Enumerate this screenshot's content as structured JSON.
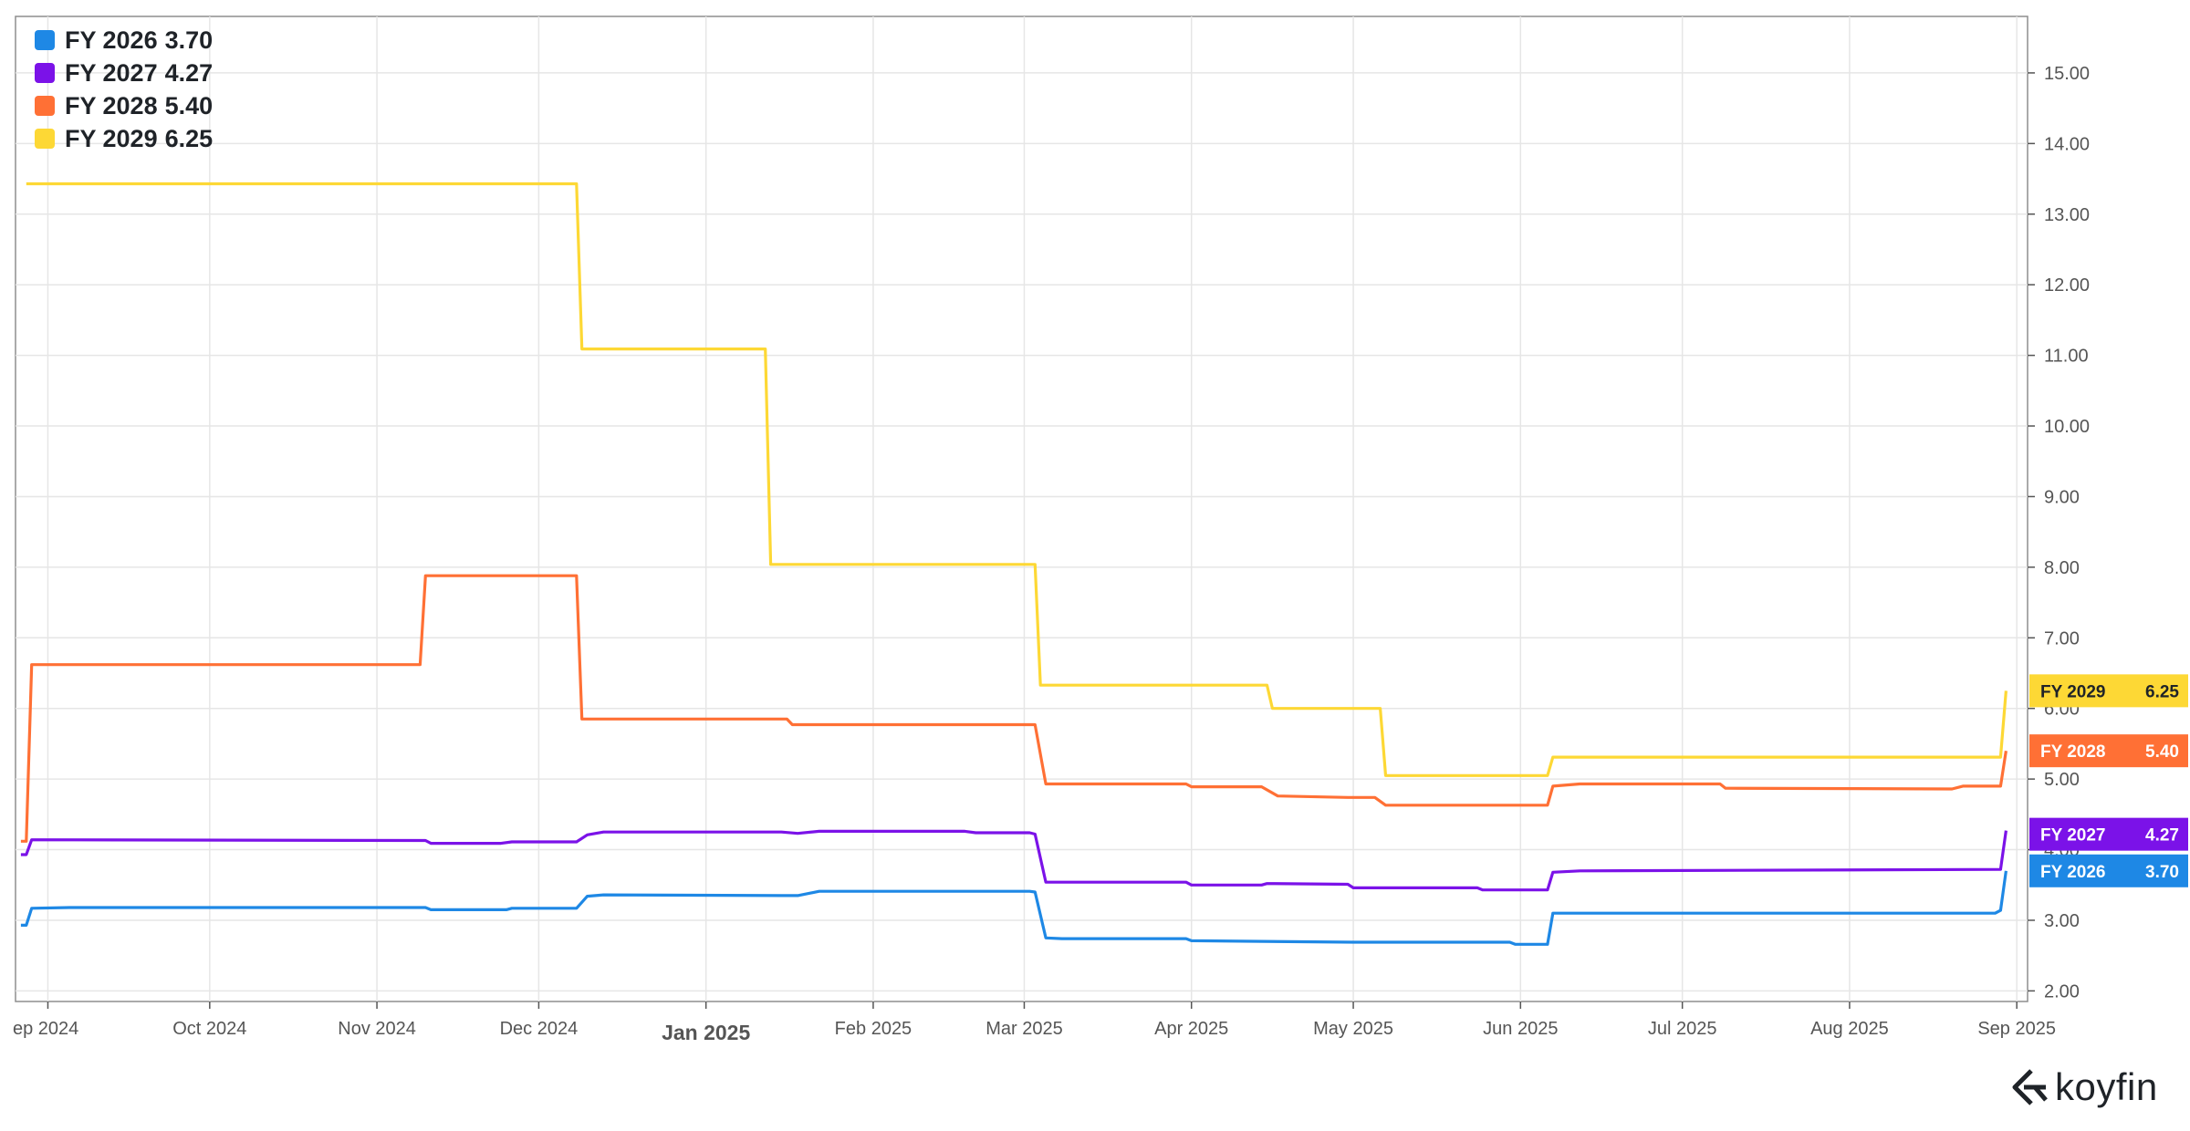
{
  "brand": {
    "name": "koyfin",
    "icon": "koyfin-logo-icon"
  },
  "chart_data": {
    "type": "line",
    "title": "",
    "xlabel": "",
    "ylabel": "",
    "x_range": [
      "2024-08-26",
      "2025-09-03"
    ],
    "ylim": [
      1.85,
      15.8
    ],
    "y_ticks": [
      "2.00",
      "3.00",
      "4.00",
      "5.00",
      "6.00",
      "7.00",
      "8.00",
      "9.00",
      "10.00",
      "11.00",
      "12.00",
      "13.00",
      "14.00",
      "15.00"
    ],
    "x_ticks": [
      {
        "date": "2024-09-01",
        "label": "ep 2024"
      },
      {
        "date": "2024-10-01",
        "label": "Oct 2024"
      },
      {
        "date": "2024-11-01",
        "label": "Nov 2024"
      },
      {
        "date": "2024-12-01",
        "label": "Dec 2024"
      },
      {
        "date": "2025-01-01",
        "label": "Jan 2025",
        "bold": true
      },
      {
        "date": "2025-02-01",
        "label": "Feb 2025"
      },
      {
        "date": "2025-03-01",
        "label": "Mar 2025"
      },
      {
        "date": "2025-04-01",
        "label": "Apr 2025"
      },
      {
        "date": "2025-05-01",
        "label": "May 2025"
      },
      {
        "date": "2025-06-01",
        "label": "Jun 2025"
      },
      {
        "date": "2025-07-01",
        "label": "Jul 2025"
      },
      {
        "date": "2025-08-01",
        "label": "Aug 2025"
      },
      {
        "date": "2025-09-01",
        "label": "Sep 2025"
      }
    ],
    "grid": true,
    "legend_position": "top-left",
    "series": [
      {
        "name": "FY 2026",
        "last": "3.70",
        "color": "#1e88e5",
        "points": [
          [
            "2024-08-27",
            2.93
          ],
          [
            "2024-08-28",
            2.93
          ],
          [
            "2024-08-29",
            3.17
          ],
          [
            "2024-09-05",
            3.18
          ],
          [
            "2024-11-10",
            3.18
          ],
          [
            "2024-11-11",
            3.15
          ],
          [
            "2024-11-25",
            3.15
          ],
          [
            "2024-11-26",
            3.17
          ],
          [
            "2024-12-08",
            3.17
          ],
          [
            "2024-12-10",
            3.34
          ],
          [
            "2024-12-13",
            3.36
          ],
          [
            "2025-01-15",
            3.35
          ],
          [
            "2025-01-18",
            3.35
          ],
          [
            "2025-01-22",
            3.41
          ],
          [
            "2025-03-02",
            3.41
          ],
          [
            "2025-03-03",
            3.4
          ],
          [
            "2025-03-05",
            2.75
          ],
          [
            "2025-03-08",
            2.74
          ],
          [
            "2025-03-31",
            2.74
          ],
          [
            "2025-04-01",
            2.71
          ],
          [
            "2025-05-01",
            2.69
          ],
          [
            "2025-05-30",
            2.69
          ],
          [
            "2025-05-31",
            2.66
          ],
          [
            "2025-06-06",
            2.66
          ],
          [
            "2025-06-07",
            3.1
          ],
          [
            "2025-06-10",
            3.1
          ],
          [
            "2025-08-28",
            3.1
          ],
          [
            "2025-08-29",
            3.14
          ],
          [
            "2025-08-30",
            3.7
          ]
        ]
      },
      {
        "name": "FY 2027",
        "last": "4.27",
        "color": "#7b12e8",
        "points": [
          [
            "2024-08-27",
            3.93
          ],
          [
            "2024-08-28",
            3.93
          ],
          [
            "2024-08-29",
            4.14
          ],
          [
            "2024-11-10",
            4.13
          ],
          [
            "2024-11-11",
            4.09
          ],
          [
            "2024-11-24",
            4.09
          ],
          [
            "2024-11-26",
            4.11
          ],
          [
            "2024-12-08",
            4.11
          ],
          [
            "2024-12-10",
            4.21
          ],
          [
            "2024-12-13",
            4.25
          ],
          [
            "2025-01-15",
            4.25
          ],
          [
            "2025-01-18",
            4.23
          ],
          [
            "2025-01-22",
            4.26
          ],
          [
            "2025-02-18",
            4.26
          ],
          [
            "2025-02-20",
            4.24
          ],
          [
            "2025-03-02",
            4.24
          ],
          [
            "2025-03-03",
            4.22
          ],
          [
            "2025-03-05",
            3.54
          ],
          [
            "2025-03-31",
            3.54
          ],
          [
            "2025-04-01",
            3.5
          ],
          [
            "2025-04-14",
            3.5
          ],
          [
            "2025-04-15",
            3.52
          ],
          [
            "2025-04-30",
            3.51
          ],
          [
            "2025-05-01",
            3.46
          ],
          [
            "2025-05-24",
            3.46
          ],
          [
            "2025-05-25",
            3.43
          ],
          [
            "2025-06-06",
            3.43
          ],
          [
            "2025-06-07",
            3.68
          ],
          [
            "2025-06-12",
            3.7
          ],
          [
            "2025-08-29",
            3.72
          ],
          [
            "2025-08-30",
            4.27
          ]
        ]
      },
      {
        "name": "FY 2028",
        "last": "5.40",
        "color": "#ff7035",
        "points": [
          [
            "2024-08-27",
            4.12
          ],
          [
            "2024-08-28",
            4.12
          ],
          [
            "2024-08-29",
            6.62
          ],
          [
            "2024-11-09",
            6.62
          ],
          [
            "2024-11-10",
            7.88
          ],
          [
            "2024-12-08",
            7.88
          ],
          [
            "2024-12-09",
            5.85
          ],
          [
            "2025-01-16",
            5.85
          ],
          [
            "2025-01-17",
            5.77
          ],
          [
            "2025-03-03",
            5.77
          ],
          [
            "2025-03-05",
            4.93
          ],
          [
            "2025-03-31",
            4.93
          ],
          [
            "2025-04-01",
            4.89
          ],
          [
            "2025-04-14",
            4.89
          ],
          [
            "2025-04-17",
            4.76
          ],
          [
            "2025-04-30",
            4.74
          ],
          [
            "2025-05-05",
            4.74
          ],
          [
            "2025-05-07",
            4.63
          ],
          [
            "2025-06-06",
            4.63
          ],
          [
            "2025-06-07",
            4.9
          ],
          [
            "2025-06-12",
            4.93
          ],
          [
            "2025-07-08",
            4.93
          ],
          [
            "2025-07-09",
            4.87
          ],
          [
            "2025-08-20",
            4.86
          ],
          [
            "2025-08-22",
            4.9
          ],
          [
            "2025-08-29",
            4.9
          ],
          [
            "2025-08-30",
            5.4
          ]
        ]
      },
      {
        "name": "FY 2029",
        "last": "6.25",
        "color": "#fdd835",
        "points": [
          [
            "2024-08-28",
            13.43
          ],
          [
            "2024-12-08",
            13.43
          ],
          [
            "2024-12-09",
            11.09
          ],
          [
            "2025-01-12",
            11.09
          ],
          [
            "2025-01-13",
            8.04
          ],
          [
            "2025-03-03",
            8.04
          ],
          [
            "2025-03-04",
            6.33
          ],
          [
            "2025-04-15",
            6.33
          ],
          [
            "2025-04-16",
            6.0
          ],
          [
            "2025-05-06",
            6.0
          ],
          [
            "2025-05-07",
            5.05
          ],
          [
            "2025-06-06",
            5.05
          ],
          [
            "2025-06-07",
            5.31
          ],
          [
            "2025-08-29",
            5.31
          ],
          [
            "2025-08-30",
            6.25
          ]
        ]
      }
    ]
  }
}
